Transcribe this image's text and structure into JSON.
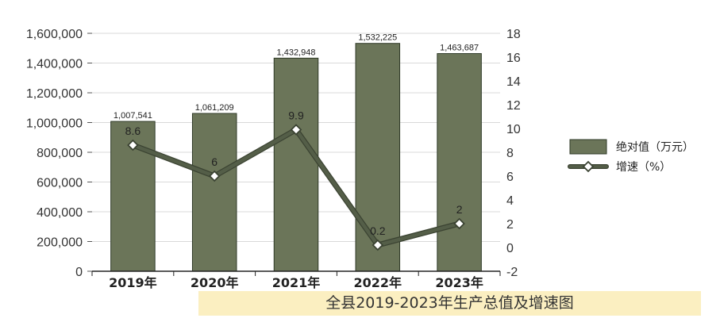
{
  "chart_data": {
    "type": "bar",
    "title": "全县2019-2023年生产总值及增速图",
    "categories": [
      "2019年",
      "2020年",
      "2021年",
      "2022年",
      "2023年"
    ],
    "series": [
      {
        "name": "绝对值（万元）",
        "type": "bar",
        "axis": "left",
        "values": [
          1007541,
          1061209,
          1432948,
          1532225,
          1463687
        ],
        "labels": [
          "1,007,541",
          "1,061,209",
          "1,432,948",
          "1,532,225",
          "1,463,687"
        ]
      },
      {
        "name": "增速（%）",
        "type": "line",
        "axis": "right",
        "values": [
          8.6,
          6,
          9.9,
          0.2,
          2
        ],
        "labels": [
          "8.6",
          "6",
          "9.9",
          "0.2",
          "2"
        ]
      }
    ],
    "y_left": {
      "range": [
        0,
        1600000
      ],
      "ticks": [
        0,
        200000,
        400000,
        600000,
        800000,
        1000000,
        1200000,
        1400000,
        1600000
      ],
      "tick_labels": [
        "0",
        "200,000",
        "400,000",
        "600,000",
        "800,000",
        "1,000,000",
        "1,200,000",
        "1,400,000",
        "1,600,000"
      ]
    },
    "y_right": {
      "range": [
        -2,
        18
      ],
      "ticks": [
        -2,
        0,
        2,
        4,
        6,
        8,
        10,
        12,
        14,
        16,
        18
      ],
      "tick_labels": [
        "-2",
        "0",
        "2",
        "4",
        "6",
        "8",
        "10",
        "12",
        "14",
        "16",
        "18"
      ]
    },
    "grid": true,
    "legend": "right",
    "colors": {
      "bar": "#6b7559",
      "bar_edge": "#2f3a28",
      "line": "#545e48",
      "grid": "#d9d9d9",
      "title_band": "#fbefc1"
    }
  }
}
